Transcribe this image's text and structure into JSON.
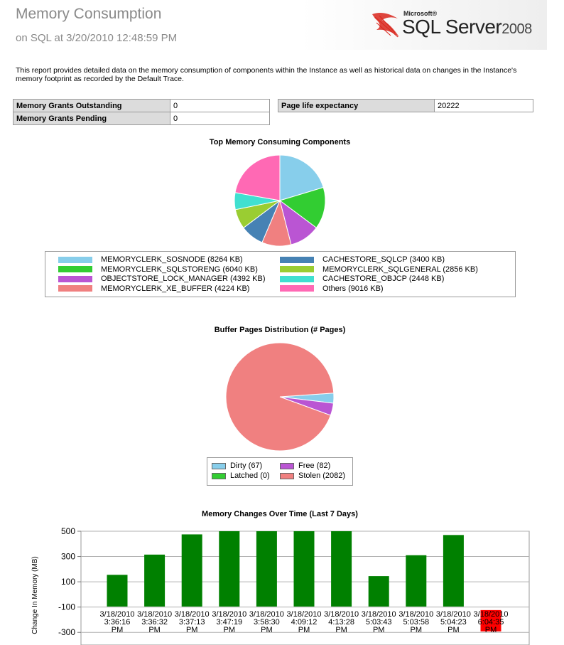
{
  "header": {
    "title": "Memory Consumption",
    "subtitle": "on SQL at 3/20/2010 12:48:59 PM",
    "logo_text": "Microsoft SQL Server 2008"
  },
  "description": "This report provides detailed data on the memory consumption of components within the Instance as well as historical data on changes in the Instance's memory footprint as recorded by the Default Trace.",
  "grants": [
    {
      "label": "Memory Grants Outstanding",
      "value": "0"
    },
    {
      "label": "Memory Grants Pending",
      "value": "0"
    }
  ],
  "page_life": {
    "label": "Page life expectancy",
    "value": "20222"
  },
  "chart_data": [
    {
      "type": "pie",
      "title": "Top Memory Consuming Components",
      "labels": [
        "MEMORYCLERK_SOSNODE (8264 KB)",
        "MEMORYCLERK_SQLSTORENG (6040 KB)",
        "OBJECTSTORE_LOCK_MANAGER (4392 KB)",
        "MEMORYCLERK_XE_BUFFER (4224 KB)",
        "CACHESTORE_SQLCP (3400 KB)",
        "MEMORYCLERK_SQLGENERAL (2856 KB)",
        "CACHESTORE_OBJCP (2448 KB)",
        "Others (9016 KB)"
      ],
      "values": [
        8264,
        6040,
        4392,
        4224,
        3400,
        2856,
        2448,
        9016
      ],
      "colors": [
        "#87ceeb",
        "#32cd32",
        "#ba55d3",
        "#f08080",
        "#4682b4",
        "#9acd32",
        "#40e0d0",
        "#ff69b4"
      ],
      "legend": "bottom"
    },
    {
      "type": "pie",
      "title": "Buffer Pages Distribution (# Pages)",
      "labels": [
        "Dirty (67)",
        "Free (82)",
        "Latched (0)",
        "Stolen (2082)"
      ],
      "values": [
        67,
        82,
        0,
        2082
      ],
      "colors": [
        "#87ceeb",
        "#ba55d3",
        "#32cd32",
        "#f08080"
      ],
      "legend": "bottom"
    },
    {
      "type": "bar",
      "title": "Memory Changes Over Time (Last 7 Days)",
      "ylabel": "Change In Memory (MB)",
      "categories": [
        "3/18/2010 3:36:16 PM",
        "3/18/2010 3:36:32 PM",
        "3/18/2010 3:37:13 PM",
        "3/18/2010 3:47:19 PM",
        "3/18/2010 3:58:30 PM",
        "3/18/2010 4:09:12 PM",
        "3/18/2010 4:13:28 PM",
        "3/18/2010 5:03:43 PM",
        "3/18/2010 5:03:58 PM",
        "3/18/2010 5:04:23 PM",
        "3/18/2010 6:04:35 PM"
      ],
      "values": [
        155,
        315,
        475,
        500,
        500,
        500,
        500,
        145,
        310,
        470,
        -80
      ],
      "colors": [
        "#008000",
        "#008000",
        "#008000",
        "#008000",
        "#008000",
        "#008000",
        "#008000",
        "#008000",
        "#008000",
        "#008000",
        "#ff0000"
      ],
      "yticks": [
        500,
        300,
        100,
        -100,
        -300
      ],
      "ylim": [
        -400,
        500
      ],
      "grid": true
    }
  ]
}
